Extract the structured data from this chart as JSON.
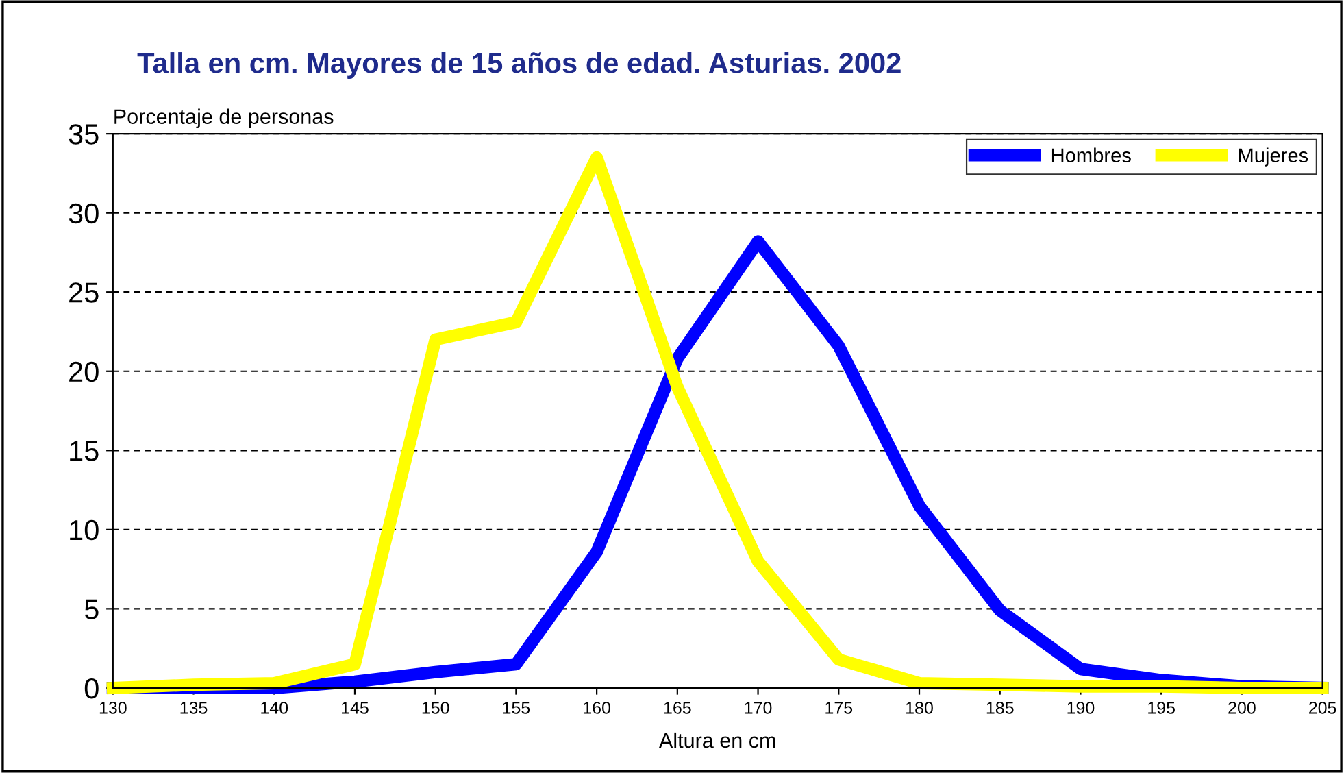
{
  "chart_data": {
    "type": "line",
    "title": "Talla en cm. Mayores de 15 años de edad. Asturias. 2002",
    "ylabel": "Porcentaje de personas",
    "xlabel": "Altura en cm",
    "x": [
      130,
      135,
      140,
      145,
      150,
      155,
      160,
      165,
      170,
      175,
      180,
      185,
      190,
      195,
      200,
      205
    ],
    "series": [
      {
        "name": "Hombres",
        "color": "#0000ff",
        "values": [
          0,
          0,
          0,
          0.4,
          1,
          1.5,
          8.6,
          20.8,
          28.2,
          21.6,
          11.5,
          4.9,
          1.2,
          0.5,
          0.1,
          0
        ]
      },
      {
        "name": "Mujeres",
        "color": "#ffff00",
        "values": [
          0,
          0.2,
          0.3,
          1.5,
          22,
          23.1,
          33.5,
          19,
          8,
          1.8,
          0.3,
          0.2,
          0.1,
          0.1,
          0,
          0
        ]
      }
    ],
    "xlim": [
      130,
      205
    ],
    "xticks": [
      130,
      135,
      140,
      145,
      150,
      155,
      160,
      165,
      170,
      175,
      180,
      185,
      190,
      195,
      200,
      205
    ],
    "ylim": [
      0,
      35
    ],
    "yticks": [
      0,
      5,
      10,
      15,
      20,
      25,
      30,
      35
    ],
    "grid": "y",
    "legend": "top right",
    "marker": "none",
    "line_style": "solid"
  }
}
